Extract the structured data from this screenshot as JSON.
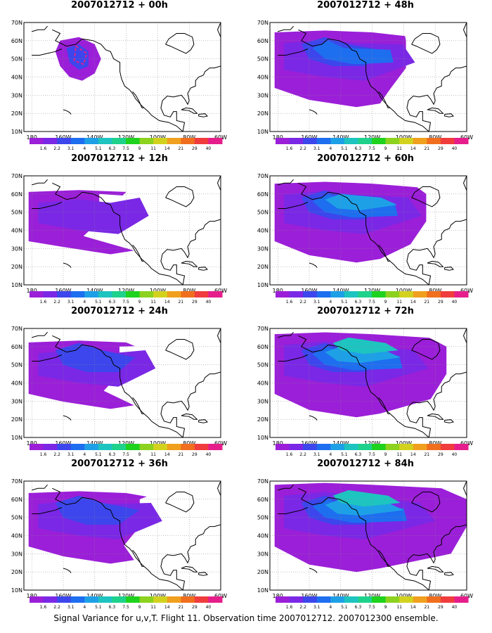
{
  "figure": {
    "caption": "Signal Variance for u,v,T. Flight 11. Observation time 2007012712. 2007012300 ensemble."
  },
  "map": {
    "lat_labels": [
      "70N",
      "60N",
      "50N",
      "40N",
      "30N",
      "20N",
      "10N"
    ],
    "lat_values": [
      70,
      60,
      50,
      40,
      30,
      20,
      10
    ],
    "lon_labels": [
      "180",
      "160W",
      "140W",
      "120W",
      "100W",
      "80W",
      "60W"
    ],
    "lon_values": [
      -180,
      -160,
      -140,
      -120,
      -100,
      -80,
      -60
    ],
    "lon_range": [
      -185,
      -60
    ],
    "lat_range": [
      10,
      70
    ],
    "grid": true
  },
  "colorbar": {
    "levels": [
      "1.6",
      "2.2",
      "3.1",
      "4",
      "5.1",
      "6.3",
      "7.5",
      "9",
      "11",
      "14",
      "21",
      "29",
      "40"
    ],
    "colors": [
      "#9b1fd8",
      "#7a28e6",
      "#3c46ec",
      "#1e6ef0",
      "#1ea0e6",
      "#1ec4c0",
      "#1ed28c",
      "#1ed21e",
      "#8cd21e",
      "#d2d21e",
      "#f0a01e",
      "#f06e1e",
      "#f03c3c",
      "#e61e8c"
    ]
  },
  "panels": [
    {
      "title": "2007012712 + 00h",
      "col": 0,
      "row": 0,
      "intensity": 0
    },
    {
      "title": "2007012712 + 12h",
      "col": 0,
      "row": 1,
      "intensity": 1
    },
    {
      "title": "2007012712 + 24h",
      "col": 0,
      "row": 2,
      "intensity": 2
    },
    {
      "title": "2007012712 + 36h",
      "col": 0,
      "row": 3,
      "intensity": 3
    },
    {
      "title": "2007012712 + 48h",
      "col": 1,
      "row": 0,
      "intensity": 4
    },
    {
      "title": "2007012712 + 60h",
      "col": 1,
      "row": 1,
      "intensity": 5
    },
    {
      "title": "2007012712 + 72h",
      "col": 1,
      "row": 2,
      "intensity": 6
    },
    {
      "title": "2007012712 + 84h",
      "col": 1,
      "row": 3,
      "intensity": 7
    }
  ]
}
